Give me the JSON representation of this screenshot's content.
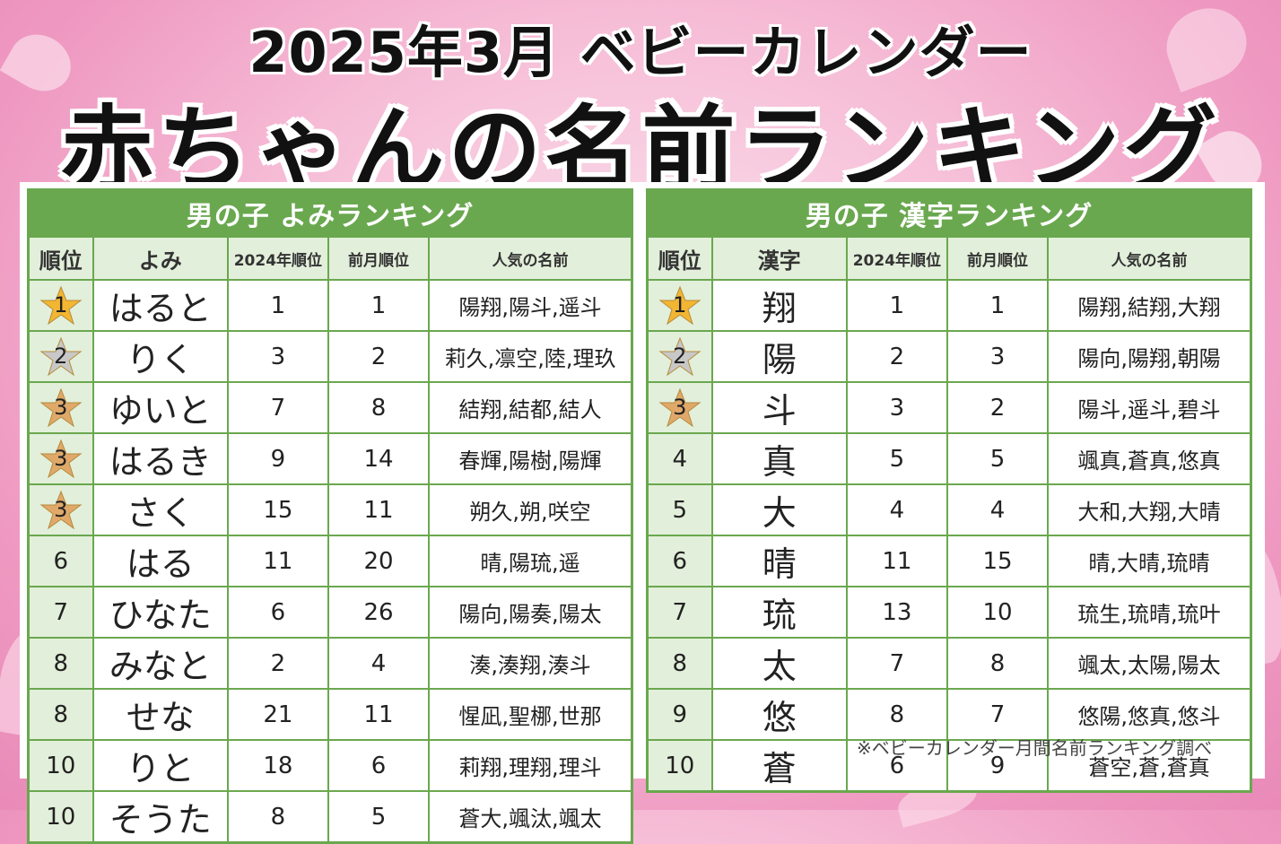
{
  "header": {
    "line1": "2025年3月 ベビーカレンダー",
    "line2": "赤ちゃんの名前ランキング"
  },
  "yomi_table": {
    "title": "男の子 よみランキング",
    "columns": [
      "順位",
      "よみ",
      "2024年順位",
      "前月順位",
      "人気の名前"
    ],
    "rows": [
      {
        "rank": "1",
        "medal": "gold",
        "name": "はると",
        "rank_2024": "1",
        "prev_month": "1",
        "popular": "陽翔,陽斗,遥斗"
      },
      {
        "rank": "2",
        "medal": "silver",
        "name": "りく",
        "rank_2024": "3",
        "prev_month": "2",
        "popular": "莉久,凛空,陸,理玖"
      },
      {
        "rank": "3",
        "medal": "bronze",
        "name": "ゆいと",
        "rank_2024": "7",
        "prev_month": "8",
        "popular": "結翔,結都,結人"
      },
      {
        "rank": "3",
        "medal": "bronze",
        "name": "はるき",
        "rank_2024": "9",
        "prev_month": "14",
        "popular": "春輝,陽樹,陽輝"
      },
      {
        "rank": "3",
        "medal": "bronze",
        "name": "さく",
        "rank_2024": "15",
        "prev_month": "11",
        "popular": "朔久,朔,咲空"
      },
      {
        "rank": "6",
        "medal": "",
        "name": "はる",
        "rank_2024": "11",
        "prev_month": "20",
        "popular": "晴,陽琉,遥"
      },
      {
        "rank": "7",
        "medal": "",
        "name": "ひなた",
        "rank_2024": "6",
        "prev_month": "26",
        "popular": "陽向,陽奏,陽太"
      },
      {
        "rank": "8",
        "medal": "",
        "name": "みなと",
        "rank_2024": "2",
        "prev_month": "4",
        "popular": "湊,湊翔,湊斗"
      },
      {
        "rank": "8",
        "medal": "",
        "name": "せな",
        "rank_2024": "21",
        "prev_month": "11",
        "popular": "惺凪,聖梛,世那"
      },
      {
        "rank": "10",
        "medal": "",
        "name": "りと",
        "rank_2024": "18",
        "prev_month": "6",
        "popular": "莉翔,理翔,理斗"
      },
      {
        "rank": "10",
        "medal": "",
        "name": "そうた",
        "rank_2024": "8",
        "prev_month": "5",
        "popular": "蒼大,颯汰,颯太"
      }
    ]
  },
  "kanji_table": {
    "title": "男の子 漢字ランキング",
    "columns": [
      "順位",
      "漢字",
      "2024年順位",
      "前月順位",
      "人気の名前"
    ],
    "rows": [
      {
        "rank": "1",
        "medal": "gold",
        "name": "翔",
        "rank_2024": "1",
        "prev_month": "1",
        "popular": "陽翔,結翔,大翔"
      },
      {
        "rank": "2",
        "medal": "silver",
        "name": "陽",
        "rank_2024": "2",
        "prev_month": "3",
        "popular": "陽向,陽翔,朝陽"
      },
      {
        "rank": "3",
        "medal": "bronze",
        "name": "斗",
        "rank_2024": "3",
        "prev_month": "2",
        "popular": "陽斗,遥斗,碧斗"
      },
      {
        "rank": "4",
        "medal": "",
        "name": "真",
        "rank_2024": "5",
        "prev_month": "5",
        "popular": "颯真,蒼真,悠真"
      },
      {
        "rank": "5",
        "medal": "",
        "name": "大",
        "rank_2024": "4",
        "prev_month": "4",
        "popular": "大和,大翔,大晴"
      },
      {
        "rank": "6",
        "medal": "",
        "name": "晴",
        "rank_2024": "11",
        "prev_month": "15",
        "popular": "晴,大晴,琉晴"
      },
      {
        "rank": "7",
        "medal": "",
        "name": "琉",
        "rank_2024": "13",
        "prev_month": "10",
        "popular": "琉生,琉晴,琉叶"
      },
      {
        "rank": "8",
        "medal": "",
        "name": "太",
        "rank_2024": "7",
        "prev_month": "8",
        "popular": "颯太,太陽,陽太"
      },
      {
        "rank": "9",
        "medal": "",
        "name": "悠",
        "rank_2024": "8",
        "prev_month": "7",
        "popular": "悠陽,悠真,悠斗"
      },
      {
        "rank": "10",
        "medal": "",
        "name": "蒼",
        "rank_2024": "6",
        "prev_month": "9",
        "popular": "蒼空,蒼,蒼真"
      }
    ]
  },
  "note": "※ベビーカレンダー月間名前ランキング調べ",
  "colors": {
    "green": "#6aa84f",
    "light_green": "#e2efda",
    "gold": "#f2b632",
    "silver": "#c8c8c8",
    "bronze": "#e0a96a"
  }
}
